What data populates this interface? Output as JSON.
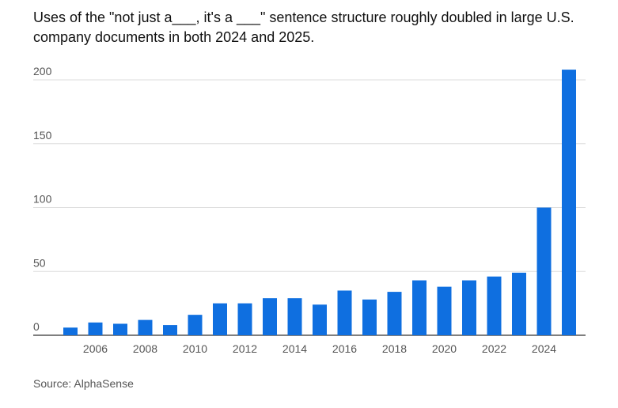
{
  "chart_data": {
    "type": "bar",
    "title": "Uses of the \"not just a___, it's a ___\" sentence structure roughly doubled in large U.S. company documents in both 2024 and 2025.",
    "source": "Source: AlphaSense",
    "x": [
      2005,
      2006,
      2007,
      2008,
      2009,
      2010,
      2011,
      2012,
      2013,
      2014,
      2015,
      2016,
      2017,
      2018,
      2019,
      2020,
      2021,
      2022,
      2023,
      2024,
      2025
    ],
    "values": [
      6,
      10,
      9,
      12,
      8,
      16,
      25,
      25,
      29,
      29,
      24,
      35,
      28,
      34,
      43,
      38,
      43,
      46,
      49,
      100,
      208
    ],
    "x_tick_labels": [
      "2006",
      "2008",
      "2010",
      "2012",
      "2014",
      "2016",
      "2018",
      "2020",
      "2022",
      "2024"
    ],
    "y_tick_labels": [
      "0",
      "50",
      "100",
      "150",
      "200"
    ],
    "y_ticks": [
      0,
      50,
      100,
      150,
      200
    ],
    "ylim": [
      0,
      210
    ],
    "xlabel": "",
    "ylabel": "",
    "grid": true,
    "bar_color": "#0f6fe0",
    "grid_color": "#dddddd"
  }
}
